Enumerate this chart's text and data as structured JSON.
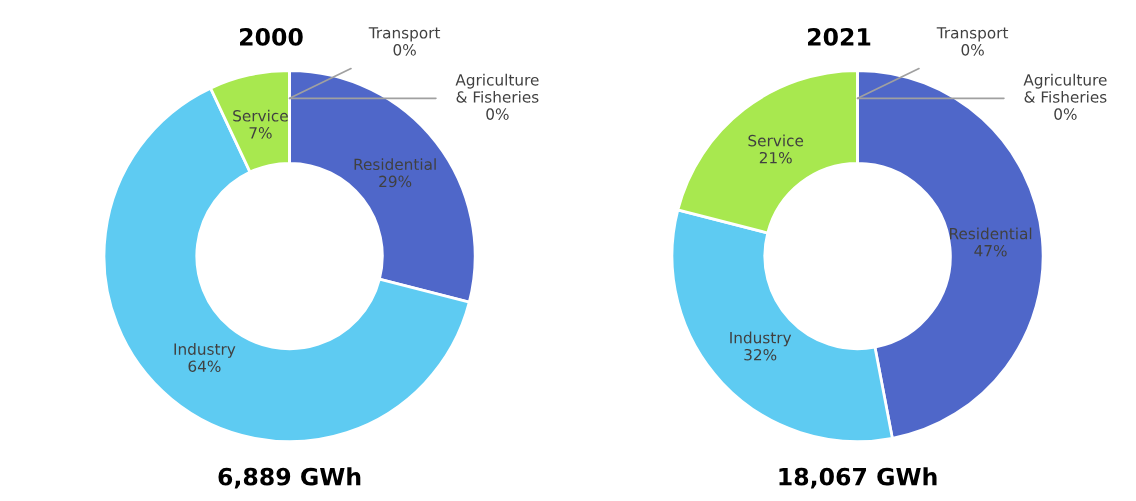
{
  "chart_data": [
    {
      "type": "donut",
      "title": "2000",
      "categories": [
        "Residential",
        "Industry",
        "Service",
        "Transport",
        "Agriculture\n& Fisheries"
      ],
      "values": [
        29,
        64,
        7,
        0,
        0
      ],
      "value_labels": [
        "29%",
        "64%",
        "7%",
        "0%",
        "0%"
      ],
      "colors": [
        "#4f67c9",
        "#5ecbf2",
        "#a8e84f",
        "#7f7f7f",
        "#bfbfbf"
      ],
      "annotations": [
        "6,889 GWh"
      ]
    },
    {
      "type": "donut",
      "title": "2021",
      "categories": [
        "Residential",
        "Industry",
        "Service",
        "Transport",
        "Agriculture\n& Fisheries"
      ],
      "values": [
        47,
        32,
        21,
        0,
        0
      ],
      "value_labels": [
        "47%",
        "32%",
        "21%",
        "0%",
        "0%"
      ],
      "colors": [
        "#4f67c9",
        "#5ecbf2",
        "#a8e84f",
        "#7f7f7f",
        "#bfbfbf"
      ],
      "annotations": [
        "18,067 GWh"
      ]
    }
  ]
}
